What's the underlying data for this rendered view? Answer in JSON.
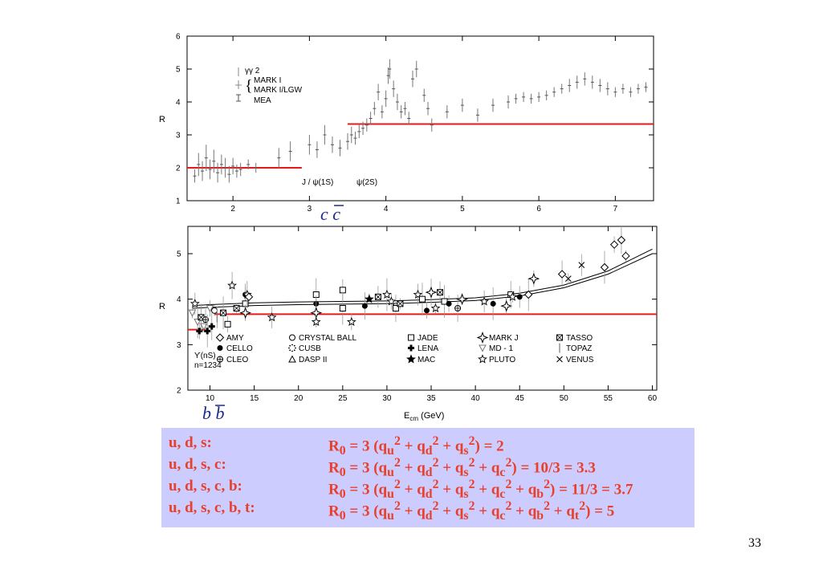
{
  "page_number": "33",
  "colors": {
    "threshold": "#e41a1c",
    "data": "#888888",
    "formula_bg": "#ccccff",
    "formula_text": "#e8402a",
    "quark_label": "#1e2a8c"
  },
  "formulas": [
    {
      "label": "u, d, s:",
      "expr": "R<sub>0</sub> = 3 (q<sub>u</sub><sup>2</sup> + q<sub>d</sub><sup>2</sup> + q<sub>s</sub><sup>2</sup>) = 2"
    },
    {
      "label": "u, d, s, c:",
      "expr": "R<sub>0</sub> = 3 (q<sub>u</sub><sup>2</sup> + q<sub>d</sub><sup>2</sup> + q<sub>s</sub><sup>2</sup> + q<sub>c</sub><sup>2</sup>) = 10/3 = 3.3"
    },
    {
      "label": "u, d, s, c, b:",
      "expr": "R<sub>0</sub> = 3 (q<sub>u</sub><sup>2</sup> + q<sub>d</sub><sup>2</sup> + q<sub>s</sub><sup>2</sup> + q<sub>c</sub><sup>2</sup> + q<sub>b</sub><sup>2</sup>) = 11/3 = 3.7"
    },
    {
      "label": "u, d, s, c, b, t:",
      "expr": "R<sub>0</sub> = 3 (q<sub>u</sub><sup>2</sup> + q<sub>d</sub><sup>2</sup> + q<sub>s</sub><sup>2</sup> + q<sub>c</sub><sup>2</sup> + q<sub>b</sub><sup>2</sup> + q<sub>t</sub><sup>2</sup>) = 5"
    }
  ],
  "chart_data": [
    {
      "type": "scatter",
      "ylabel": "R",
      "xlim": [
        1.4,
        7.5
      ],
      "ylim": [
        1,
        6
      ],
      "xticks": [
        2,
        3,
        4,
        5,
        6,
        7
      ],
      "yticks": [
        1,
        2,
        3,
        4,
        5,
        6
      ],
      "legend": {
        "placement": "top-left",
        "entries": [
          "γγ 2",
          "MARK I",
          "MARK I/LGW",
          "MEA"
        ]
      },
      "annotations": [
        "J / ψ(1S)",
        "ψ(2S)"
      ],
      "quark_label": "c c",
      "thresholds": [
        {
          "x": [
            1.4,
            2.9
          ],
          "y": 2.0
        },
        {
          "x": [
            3.5,
            7.5
          ],
          "y": 3.33
        }
      ],
      "points": [
        [
          1.5,
          1.75,
          0.2
        ],
        [
          1.55,
          2.1,
          0.35
        ],
        [
          1.6,
          1.9,
          0.3
        ],
        [
          1.65,
          2.3,
          0.4
        ],
        [
          1.7,
          1.95,
          0.3
        ],
        [
          1.75,
          2.2,
          0.35
        ],
        [
          1.8,
          1.85,
          0.3
        ],
        [
          1.85,
          2.1,
          0.3
        ],
        [
          1.9,
          2.0,
          0.3
        ],
        [
          1.95,
          1.8,
          0.25
        ],
        [
          2.0,
          2.05,
          0.25
        ],
        [
          2.05,
          1.9,
          0.2
        ],
        [
          2.1,
          1.95,
          0.2
        ],
        [
          2.2,
          2.1,
          0.15
        ],
        [
          2.3,
          2.0,
          0.15
        ],
        [
          2.6,
          2.3,
          0.3
        ],
        [
          2.75,
          2.5,
          0.3
        ],
        [
          3.0,
          2.7,
          0.3
        ],
        [
          3.1,
          2.55,
          0.25
        ],
        [
          3.2,
          3.0,
          0.3
        ],
        [
          3.3,
          2.7,
          0.25
        ],
        [
          3.4,
          2.6,
          0.25
        ],
        [
          3.5,
          2.8,
          0.25
        ],
        [
          3.55,
          3.0,
          0.25
        ],
        [
          3.6,
          2.9,
          0.2
        ],
        [
          3.65,
          3.1,
          0.2
        ],
        [
          3.7,
          3.2,
          0.2
        ],
        [
          3.75,
          3.3,
          0.2
        ],
        [
          3.8,
          3.5,
          0.2
        ],
        [
          3.85,
          3.8,
          0.2
        ],
        [
          3.9,
          4.3,
          0.25
        ],
        [
          3.95,
          3.7,
          0.2
        ],
        [
          4.0,
          4.1,
          0.25
        ],
        [
          4.03,
          4.8,
          0.25
        ],
        [
          4.05,
          5.0,
          0.3
        ],
        [
          4.1,
          4.4,
          0.25
        ],
        [
          4.15,
          4.0,
          0.25
        ],
        [
          4.2,
          3.7,
          0.2
        ],
        [
          4.25,
          3.8,
          0.2
        ],
        [
          4.3,
          3.5,
          0.2
        ],
        [
          4.35,
          4.7,
          0.25
        ],
        [
          4.4,
          5.0,
          0.25
        ],
        [
          4.5,
          4.2,
          0.2
        ],
        [
          4.55,
          3.8,
          0.2
        ],
        [
          4.6,
          3.3,
          0.2
        ],
        [
          4.8,
          3.7,
          0.2
        ],
        [
          5.0,
          3.9,
          0.2
        ],
        [
          5.2,
          3.6,
          0.2
        ],
        [
          5.4,
          3.9,
          0.2
        ],
        [
          5.6,
          4.0,
          0.2
        ],
        [
          5.7,
          4.1,
          0.15
        ],
        [
          5.8,
          4.15,
          0.15
        ],
        [
          5.9,
          4.1,
          0.15
        ],
        [
          6.0,
          4.15,
          0.15
        ],
        [
          6.1,
          4.2,
          0.15
        ],
        [
          6.2,
          4.3,
          0.15
        ],
        [
          6.3,
          4.4,
          0.15
        ],
        [
          6.4,
          4.5,
          0.2
        ],
        [
          6.5,
          4.6,
          0.2
        ],
        [
          6.6,
          4.7,
          0.2
        ],
        [
          6.7,
          4.6,
          0.2
        ],
        [
          6.8,
          4.5,
          0.2
        ],
        [
          6.9,
          4.4,
          0.2
        ],
        [
          7.0,
          4.3,
          0.15
        ],
        [
          7.1,
          4.4,
          0.15
        ],
        [
          7.2,
          4.3,
          0.15
        ],
        [
          7.3,
          4.4,
          0.15
        ],
        [
          7.4,
          4.45,
          0.15
        ]
      ]
    },
    {
      "type": "scatter",
      "xlabel": "E_cm (GeV)",
      "ylabel": "R",
      "xlim": [
        7.5,
        60.5
      ],
      "ylim": [
        2,
        5.6
      ],
      "xticks": [
        10,
        15,
        20,
        25,
        30,
        35,
        40,
        45,
        50,
        55,
        60
      ],
      "yticks": [
        2,
        3,
        4,
        5
      ],
      "legend": {
        "placement": "bottom",
        "entries": [
          {
            "label": "AMY",
            "marker": "diamond"
          },
          {
            "label": "CELLO",
            "marker": "filled-circle"
          },
          {
            "label": "CLEO",
            "marker": "circle-plus"
          },
          {
            "label": "CRYSTAL BALL",
            "marker": "circle"
          },
          {
            "label": "CUSB",
            "marker": "dotted-star"
          },
          {
            "label": "DASP II",
            "marker": "triangle"
          },
          {
            "label": "JADE",
            "marker": "square"
          },
          {
            "label": "LENA",
            "marker": "filled-cross"
          },
          {
            "label": "MAC",
            "marker": "filled-star"
          },
          {
            "label": "MARK J",
            "marker": "four-point-star"
          },
          {
            "label": "MD - 1",
            "marker": "down-triangle"
          },
          {
            "label": "PLUTO",
            "marker": "star"
          },
          {
            "label": "TASSO",
            "marker": "x-square"
          },
          {
            "label": "TOPAZ",
            "marker": "bar"
          },
          {
            "label": "VENUS",
            "marker": "x"
          }
        ]
      },
      "annotations": [
        "ϒ(nS)",
        "n=1234"
      ],
      "quark_label": "b b",
      "thresholds": [
        {
          "x": [
            7.5,
            9.5
          ],
          "y": 3.33
        },
        {
          "x": [
            10.5,
            60.5
          ],
          "y": 3.67
        }
      ],
      "qcd_curves": [
        {
          "x": [
            8,
            10,
            15,
            20,
            25,
            30,
            35,
            40,
            45,
            50,
            55,
            60
          ],
          "y": [
            3.8,
            3.82,
            3.86,
            3.88,
            3.89,
            3.9,
            3.93,
            3.97,
            4.07,
            4.25,
            4.55,
            5.0
          ]
        },
        {
          "x": [
            8,
            10,
            15,
            20,
            25,
            30,
            35,
            40,
            45,
            50,
            55,
            60
          ],
          "y": [
            3.86,
            3.88,
            3.92,
            3.94,
            3.95,
            3.96,
            3.99,
            4.03,
            4.13,
            4.31,
            4.62,
            5.1
          ]
        }
      ],
      "points": [
        [
          8.0,
          3.7,
          "down-triangle"
        ],
        [
          8.3,
          3.9,
          "star"
        ],
        [
          8.6,
          3.5,
          "down-triangle"
        ],
        [
          8.8,
          3.3,
          "filled-cross"
        ],
        [
          9.0,
          3.6,
          "x-square"
        ],
        [
          9.3,
          3.4,
          "down-triangle"
        ],
        [
          9.5,
          3.55,
          "circle-plus"
        ],
        [
          9.7,
          3.3,
          "filled-cross"
        ],
        [
          10.0,
          3.8,
          "down-triangle"
        ],
        [
          10.2,
          3.4,
          "filled-cross"
        ],
        [
          10.5,
          3.75,
          "circle"
        ],
        [
          10.8,
          3.6,
          "bar"
        ],
        [
          11.5,
          3.7,
          "x-square"
        ],
        [
          12.0,
          3.45,
          "square"
        ],
        [
          12.5,
          4.3,
          "star"
        ],
        [
          13.0,
          3.8,
          "x-square"
        ],
        [
          14.0,
          4.1,
          "filled-circle"
        ],
        [
          14.0,
          3.9,
          "square"
        ],
        [
          14.0,
          3.7,
          "four-point-star"
        ],
        [
          14.2,
          4.1,
          "star"
        ],
        [
          14.4,
          4.05,
          "diamond"
        ],
        [
          17.0,
          3.6,
          "star"
        ],
        [
          22.0,
          4.1,
          "square"
        ],
        [
          22.0,
          3.9,
          "filled-circle"
        ],
        [
          22.0,
          3.7,
          "four-point-star"
        ],
        [
          22.0,
          3.5,
          "star"
        ],
        [
          25.0,
          4.2,
          "square"
        ],
        [
          25.0,
          3.8,
          "square"
        ],
        [
          26.0,
          3.5,
          "star"
        ],
        [
          27.5,
          3.85,
          "filled-circle"
        ],
        [
          28.0,
          4.0,
          "filled-star"
        ],
        [
          29.0,
          4.05,
          "x-square"
        ],
        [
          30.0,
          4.1,
          "star"
        ],
        [
          30.5,
          3.95,
          "star"
        ],
        [
          31.0,
          3.8,
          "square"
        ],
        [
          31.5,
          3.9,
          "x-square"
        ],
        [
          33.5,
          4.1,
          "star"
        ],
        [
          34.0,
          4.0,
          "square"
        ],
        [
          34.5,
          3.75,
          "filled-circle"
        ],
        [
          35.0,
          4.15,
          "four-point-star"
        ],
        [
          35.5,
          3.8,
          "star"
        ],
        [
          36.0,
          4.15,
          "x-square"
        ],
        [
          36.5,
          3.95,
          "square"
        ],
        [
          37.0,
          3.9,
          "filled-circle"
        ],
        [
          38.0,
          3.8,
          "circle-plus"
        ],
        [
          38.5,
          4.0,
          "four-point-star"
        ],
        [
          41.0,
          3.95,
          "star"
        ],
        [
          42.0,
          3.9,
          "filled-circle"
        ],
        [
          43.5,
          3.85,
          "four-point-star"
        ],
        [
          44.0,
          4.1,
          "square"
        ],
        [
          44.2,
          4.05,
          "star"
        ],
        [
          45.0,
          4.05,
          "filled-circle"
        ],
        [
          46.0,
          4.1,
          "diamond"
        ],
        [
          46.6,
          4.45,
          "four-point-star"
        ],
        [
          49.8,
          4.55,
          "diamond"
        ],
        [
          50.5,
          4.45,
          "x"
        ],
        [
          52.0,
          4.75,
          "x"
        ],
        [
          54.6,
          4.7,
          "diamond"
        ],
        [
          55.7,
          5.2,
          "diamond"
        ],
        [
          56.5,
          5.3,
          "diamond"
        ],
        [
          57.0,
          4.95,
          "diamond"
        ]
      ]
    }
  ]
}
